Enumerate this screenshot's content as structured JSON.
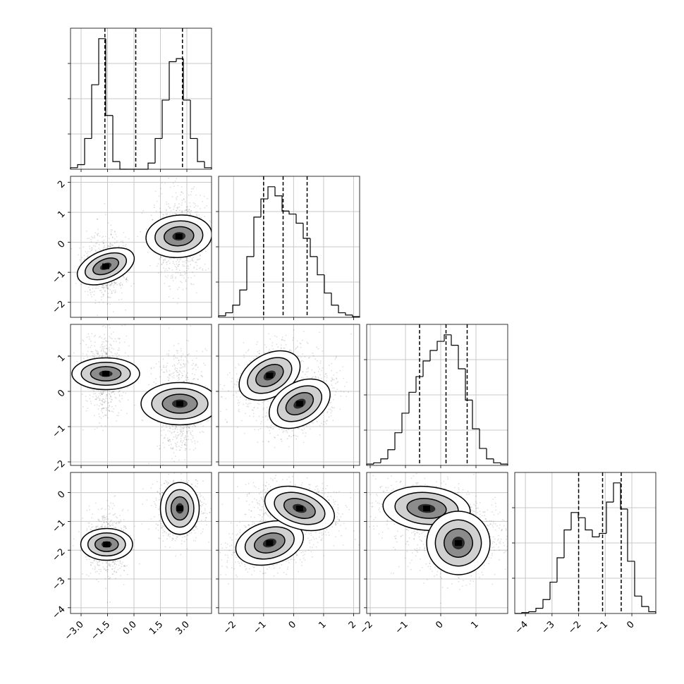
{
  "chart_data": {
    "type": "corner",
    "parameters": 4,
    "grid": true,
    "diagonal": [
      {
        "type": "histogram",
        "range": [
          -3.6,
          4.4
        ],
        "counts": [
          0.01,
          0.03,
          0.2,
          0.55,
          0.85,
          0.35,
          0.05,
          0.0,
          0.0,
          0.0,
          0.0,
          0.04,
          0.2,
          0.45,
          0.7,
          0.72,
          0.45,
          0.2,
          0.05,
          0.01
        ],
        "quantiles": [
          -1.65,
          0.1,
          2.75
        ],
        "xticks": [
          -3.0,
          -1.5,
          0.0,
          1.5,
          3.0
        ],
        "xtick_labels": [
          "−3.0",
          "−1.5",
          "0.0",
          "1.5",
          "3.0"
        ]
      },
      {
        "type": "histogram",
        "range": [
          -2.5,
          2.2
        ],
        "counts": [
          0.01,
          0.03,
          0.08,
          0.18,
          0.4,
          0.66,
          0.78,
          0.86,
          0.8,
          0.7,
          0.68,
          0.62,
          0.52,
          0.4,
          0.28,
          0.16,
          0.08,
          0.03,
          0.015,
          0.005
        ],
        "quantiles": [
          -1.0,
          -0.35,
          0.45
        ],
        "xticks": [
          -2,
          -1,
          0,
          1,
          2
        ],
        "xtick_labels": [
          "−2",
          "−1",
          "0",
          "1",
          "2"
        ]
      },
      {
        "type": "histogram",
        "range": [
          -2.1,
          1.9
        ],
        "counts": [
          0.01,
          0.02,
          0.05,
          0.12,
          0.25,
          0.4,
          0.56,
          0.68,
          0.8,
          0.88,
          0.95,
          1.0,
          0.92,
          0.74,
          0.5,
          0.28,
          0.13,
          0.05,
          0.02,
          0.01
        ],
        "quantiles": [
          -0.6,
          0.15,
          0.75
        ],
        "xticks": [
          -2,
          -1,
          0,
          1
        ],
        "xtick_labels": [
          "−2",
          "−1",
          "0",
          "1"
        ]
      },
      {
        "type": "histogram",
        "range": [
          -4.4,
          0.9
        ],
        "counts": [
          0.0,
          0.005,
          0.01,
          0.03,
          0.08,
          0.18,
          0.32,
          0.48,
          0.58,
          0.55,
          0.48,
          0.44,
          0.46,
          0.64,
          0.75,
          0.6,
          0.3,
          0.1,
          0.04,
          0.01
        ],
        "quantiles": [
          -2.0,
          -1.1,
          -0.4
        ],
        "xticks": [
          -4,
          -3,
          -2,
          -1,
          0
        ],
        "xtick_labels": [
          "−4",
          "−3",
          "−2",
          "−1",
          "0"
        ]
      }
    ],
    "pairs": [
      {
        "row": 1,
        "col": 0,
        "xrange": [
          -3.6,
          4.4
        ],
        "yrange": [
          -2.5,
          2.2
        ],
        "clusters": [
          {
            "cx": -1.6,
            "cy": -0.8,
            "sx": 0.45,
            "sy": 0.5,
            "rotation_deg": -68
          },
          {
            "cx": 2.55,
            "cy": 0.2,
            "sx": 0.6,
            "sy": 0.55,
            "rotation_deg": -85
          }
        ],
        "yticks": [
          -2,
          -1,
          0,
          1,
          2
        ],
        "ytick_labels": [
          "−2",
          "−1",
          "0",
          "1",
          "2"
        ]
      },
      {
        "row": 2,
        "col": 0,
        "xrange": [
          -3.6,
          4.4
        ],
        "yrange": [
          -2.1,
          1.9
        ],
        "clusters": [
          {
            "cx": -1.6,
            "cy": 0.5,
            "sx": 0.45,
            "sy": 0.48,
            "rotation_deg": -90
          },
          {
            "cx": 2.6,
            "cy": -0.35,
            "sx": 0.6,
            "sy": 0.55,
            "rotation_deg": -90
          }
        ],
        "yticks": [
          -2,
          -1,
          0,
          1
        ],
        "ytick_labels": [
          "−2",
          "−1",
          "0",
          "1"
        ]
      },
      {
        "row": 2,
        "col": 1,
        "xrange": [
          -2.5,
          2.2
        ],
        "yrange": [
          -2.1,
          1.9
        ],
        "clusters": [
          {
            "cx": -0.8,
            "cy": 0.45,
            "sx": 0.55,
            "sy": 0.3,
            "rotation_deg": 30
          },
          {
            "cx": 0.2,
            "cy": -0.35,
            "sx": 0.55,
            "sy": 0.3,
            "rotation_deg": 30
          }
        ]
      },
      {
        "row": 3,
        "col": 0,
        "xrange": [
          -3.6,
          4.4
        ],
        "yrange": [
          -4.2,
          0.7
        ],
        "clusters": [
          {
            "cx": -1.55,
            "cy": -1.8,
            "sx": 0.45,
            "sy": 0.45,
            "rotation_deg": -90
          },
          {
            "cx": 2.6,
            "cy": -0.55,
            "sx": 0.55,
            "sy": 0.45,
            "rotation_deg": 0
          }
        ],
        "yticks": [
          -4,
          -3,
          -2,
          -1,
          0
        ],
        "ytick_labels": [
          "−4",
          "−3",
          "−2",
          "−1",
          "0"
        ],
        "xticks": [
          -3.0,
          -1.5,
          0.0,
          1.5,
          3.0
        ],
        "xtick_labels": [
          "−3.0",
          "−1.5",
          "0.0",
          "1.5",
          "3.0"
        ]
      },
      {
        "row": 3,
        "col": 1,
        "xrange": [
          -2.5,
          2.2
        ],
        "yrange": [
          -4.2,
          0.7
        ],
        "clusters": [
          {
            "cx": -0.8,
            "cy": -1.75,
            "sx": 0.35,
            "sy": 0.6,
            "rotation_deg": -75
          },
          {
            "cx": 0.2,
            "cy": -0.55,
            "sx": 0.6,
            "sy": 0.35,
            "rotation_deg": -18
          }
        ],
        "xticks": [
          -2,
          -1,
          0,
          1,
          2
        ],
        "xtick_labels": [
          "−2",
          "−1",
          "0",
          "1",
          "2"
        ]
      },
      {
        "row": 3,
        "col": 2,
        "xrange": [
          -2.1,
          1.9
        ],
        "yrange": [
          -4.2,
          0.7
        ],
        "clusters": [
          {
            "cx": -0.4,
            "cy": -0.55,
            "sx": 0.62,
            "sy": 0.38,
            "rotation_deg": -5
          },
          {
            "cx": 0.5,
            "cy": -1.75,
            "sx": 0.45,
            "sy": 0.55,
            "rotation_deg": -70
          }
        ],
        "xticks": [
          -2,
          -1,
          0,
          1
        ],
        "xtick_labels": [
          "−2",
          "−1",
          "0",
          "1"
        ]
      }
    ]
  }
}
